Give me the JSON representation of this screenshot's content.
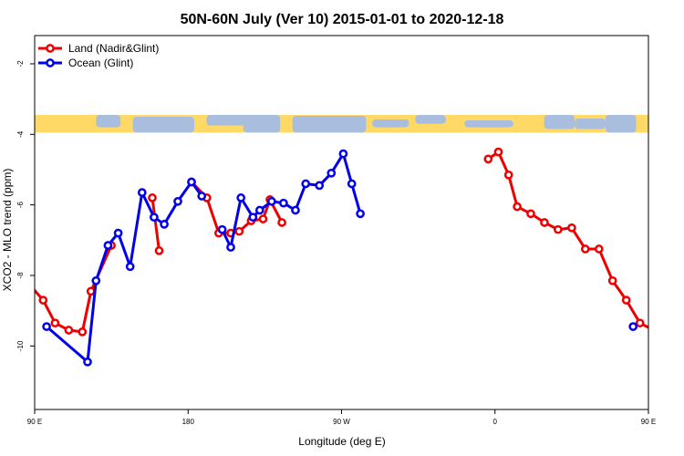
{
  "chart_data": {
    "type": "line",
    "title": "50N-60N July (Ver 10)   2015-01-01 to 2020-12-18",
    "xlabel": "Longitude (deg E)",
    "ylabel": "XCO2 - MLO trend (ppm)",
    "xlim": [
      90,
      450
    ],
    "ylim": [
      -11.8,
      -1.2
    ],
    "x_ticks": [
      {
        "value": 90,
        "label": "90 E"
      },
      {
        "value": 180,
        "label": "180"
      },
      {
        "value": 270,
        "label": "90 W"
      },
      {
        "value": 360,
        "label": "0"
      },
      {
        "value": 450,
        "label": "90 E"
      },
      {
        "value": 540,
        "label": "180"
      }
    ],
    "y_ticks": [
      -10,
      -8,
      -6,
      -4,
      -2
    ],
    "legend_position": "top-left",
    "map_strip": {
      "y_top": -3.45,
      "y_bottom": -3.95,
      "land_color": "#ffd966",
      "ocean_color": "#a9bede"
    },
    "series": [
      {
        "name": "Land (Nadir&Glint)",
        "color": "#ee0000",
        "segments": [
          [
            [
              85,
              -8.15
            ],
            [
              95,
              -8.7
            ],
            [
              102,
              -9.35
            ],
            [
              110,
              -9.55
            ],
            [
              118,
              -9.6
            ],
            [
              123,
              -8.45
            ],
            [
              135,
              -7.15
            ]
          ],
          [
            [
              159,
              -5.8
            ],
            [
              163,
              -7.3
            ]
          ],
          [
            [
              182,
              -5.35
            ],
            [
              191,
              -5.8
            ],
            [
              198,
              -6.8
            ],
            [
              205,
              -6.8
            ],
            [
              210,
              -6.75
            ],
            [
              217,
              -6.45
            ],
            [
              224,
              -6.4
            ],
            [
              228,
              -5.85
            ],
            [
              235,
              -6.5
            ]
          ],
          [
            [
              356,
              -4.7
            ],
            [
              362,
              -4.5
            ],
            [
              368,
              -5.15
            ],
            [
              373,
              -6.05
            ],
            [
              381,
              -6.25
            ],
            [
              389,
              -6.5
            ],
            [
              397,
              -6.7
            ],
            [
              405,
              -6.65
            ],
            [
              413,
              -7.25
            ],
            [
              421,
              -7.25
            ],
            [
              429,
              -8.15
            ],
            [
              437,
              -8.7
            ],
            [
              445,
              -9.35
            ],
            [
              453,
              -9.55
            ],
            [
              461,
              -9.6
            ],
            [
              467,
              -8.4
            ],
            [
              479,
              -7.15
            ]
          ]
        ]
      },
      {
        "name": "Ocean (Glint)",
        "color": "#0000ee",
        "segments": [
          [
            [
              97,
              -9.45
            ],
            [
              121,
              -10.45
            ],
            [
              126,
              -8.15
            ],
            [
              133,
              -7.15
            ],
            [
              139,
              -6.8
            ],
            [
              146,
              -7.75
            ],
            [
              153,
              -5.65
            ],
            [
              160,
              -6.35
            ],
            [
              166,
              -6.55
            ],
            [
              174,
              -5.9
            ],
            [
              182,
              -5.35
            ],
            [
              188,
              -5.75
            ]
          ],
          [
            [
              200,
              -6.7
            ],
            [
              205,
              -7.2
            ],
            [
              211,
              -5.8
            ],
            [
              218,
              -6.35
            ],
            [
              222,
              -6.15
            ],
            [
              229,
              -5.9
            ],
            [
              236,
              -5.95
            ],
            [
              243,
              -6.15
            ],
            [
              249,
              -5.4
            ],
            [
              257,
              -5.45
            ],
            [
              264,
              -5.1
            ],
            [
              271,
              -4.55
            ],
            [
              276,
              -5.4
            ],
            [
              281,
              -6.25
            ]
          ],
          [
            [
              441,
              -9.45
            ]
          ],
          [
            [
              466,
              -10.45
            ],
            [
              469,
              -8.15
            ],
            [
              476,
              -7.15
            ],
            [
              483,
              -6.8
            ],
            [
              490,
              -7.75
            ]
          ]
        ]
      }
    ]
  }
}
